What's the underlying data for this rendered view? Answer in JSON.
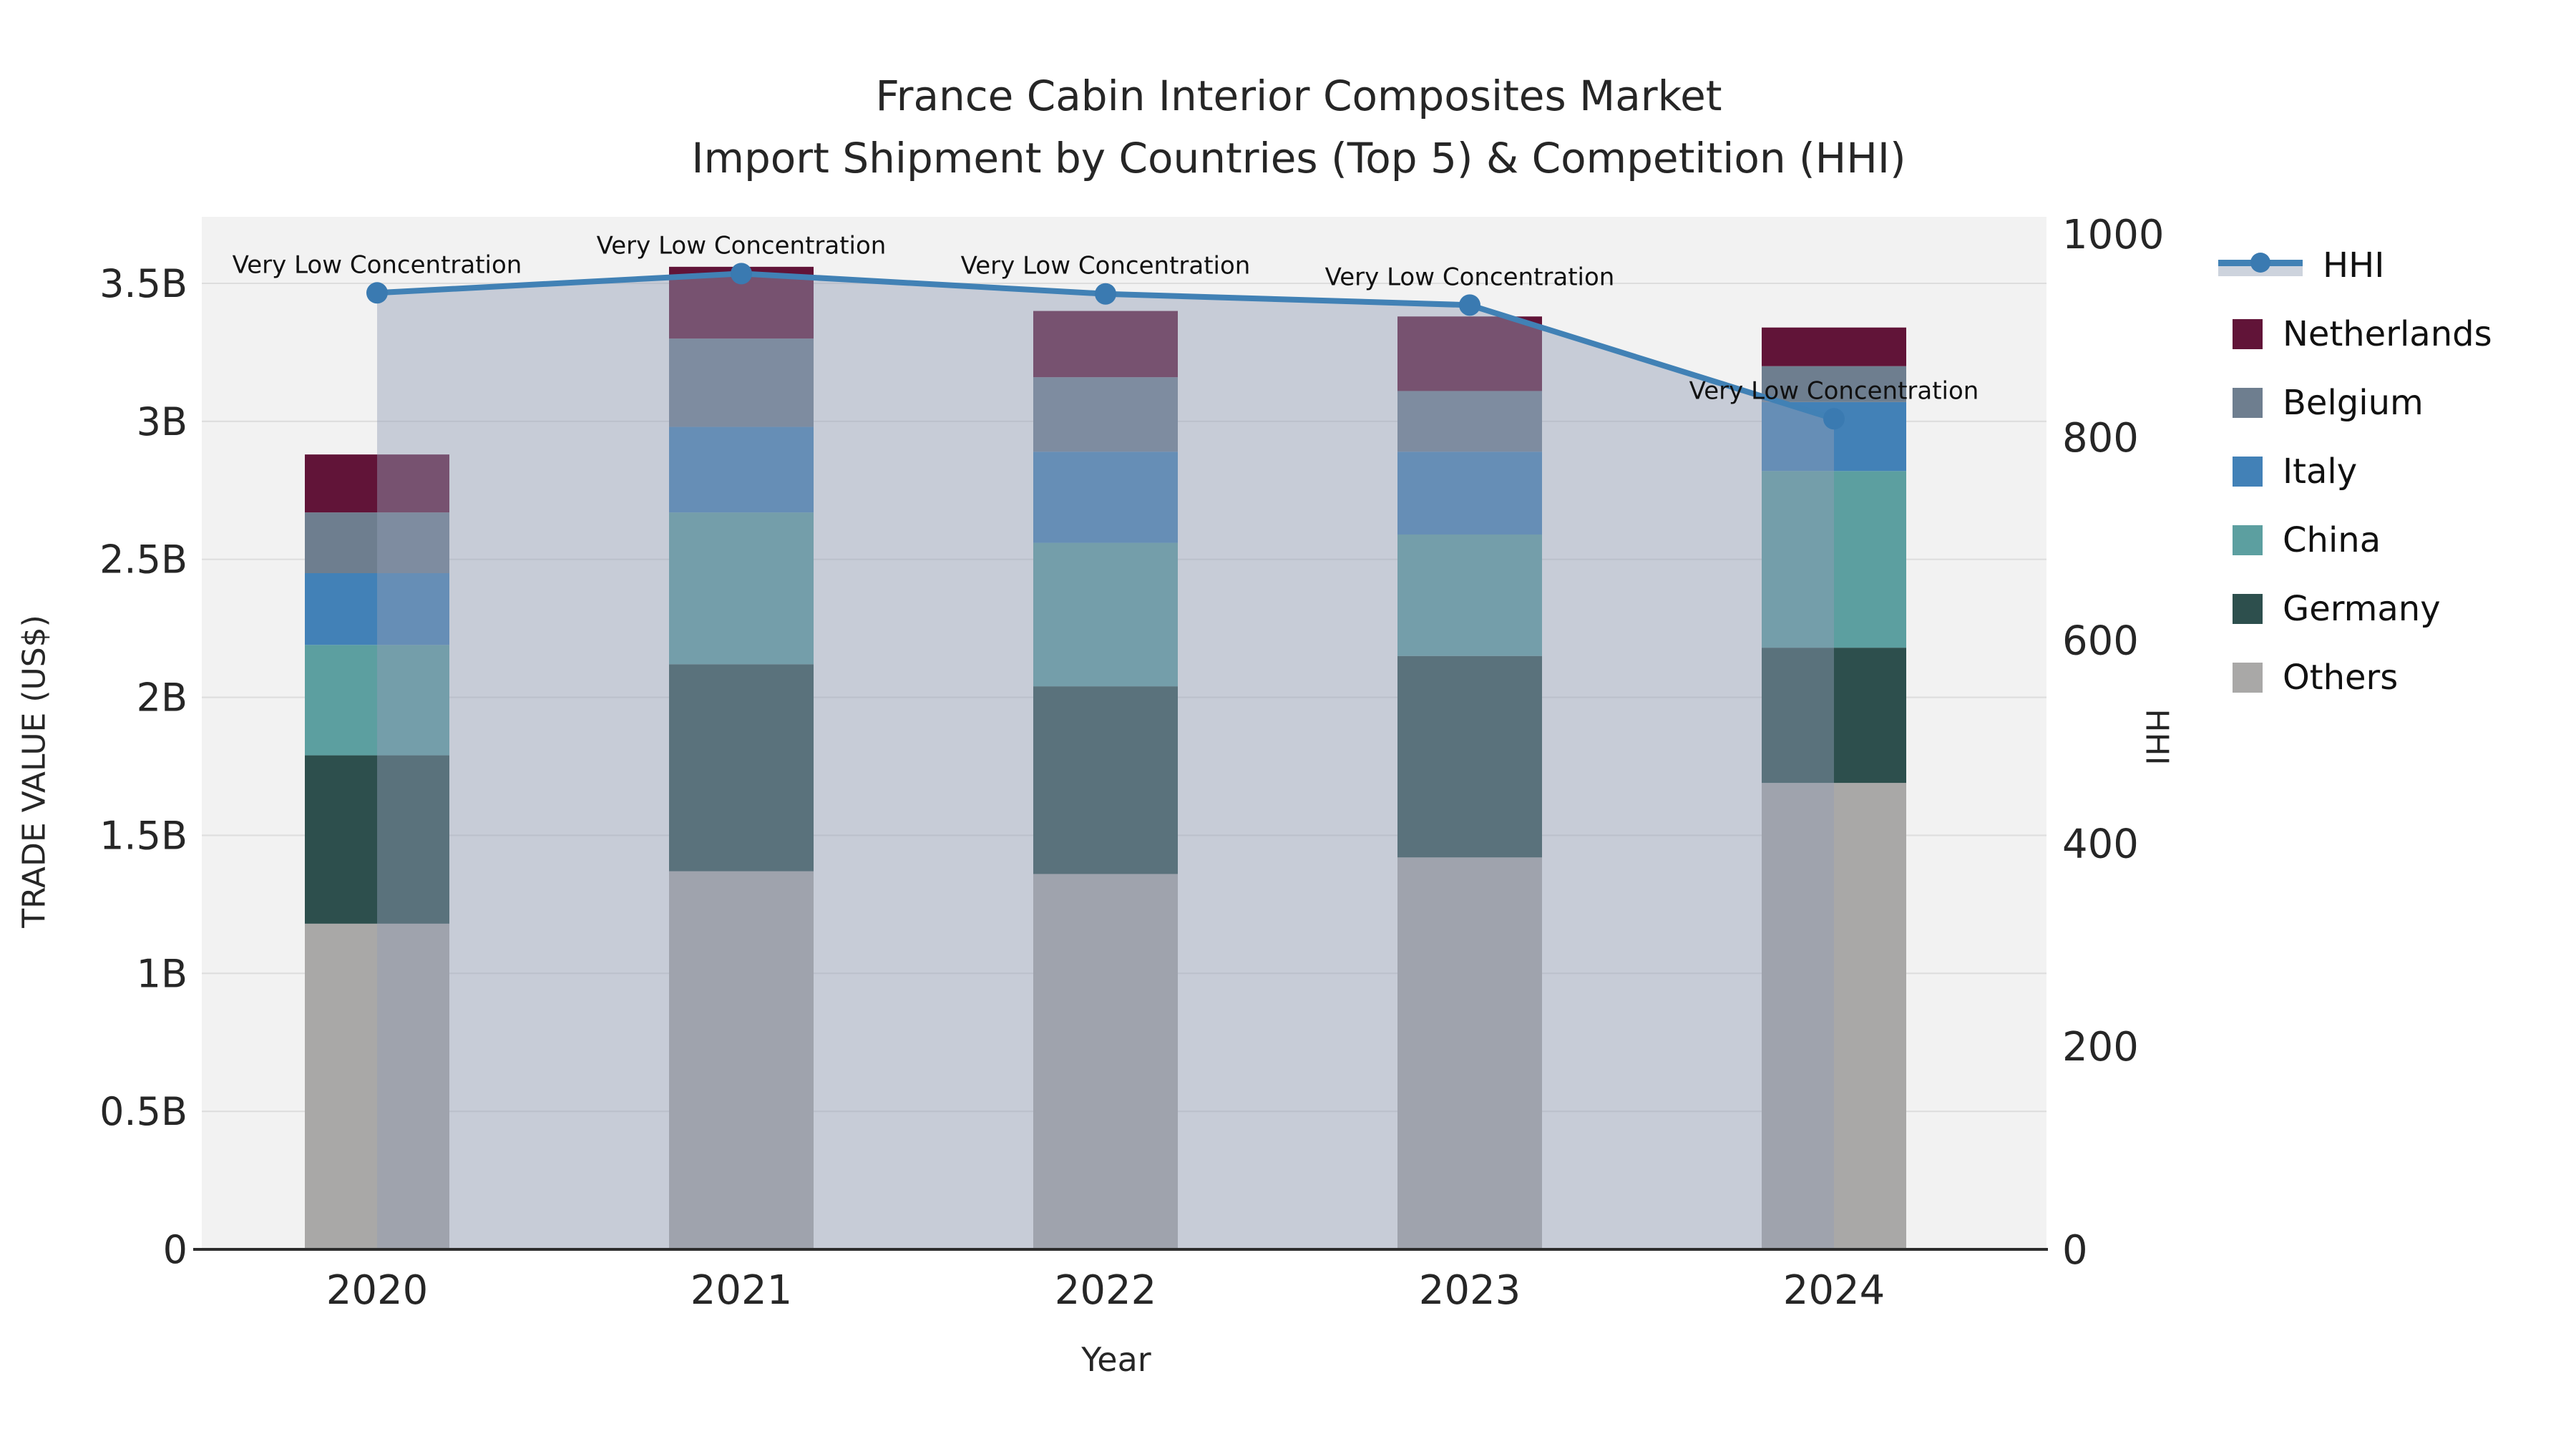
{
  "title": {
    "line1": "France Cabin Interior Composites Market",
    "line2": "Import Shipment by Countries (Top 5) & Competition (HHI)"
  },
  "axes": {
    "y_left": {
      "title": "TRADE VALUE (US$)",
      "ticks": [
        "0",
        "0.5B",
        "1B",
        "1.5B",
        "2B",
        "2.5B",
        "3B",
        "3.5B"
      ]
    },
    "y_right": {
      "title": "HHI",
      "ticks": [
        "0",
        "200",
        "400",
        "600",
        "800",
        "1000"
      ]
    },
    "x": {
      "title": "Year",
      "ticks": [
        "2020",
        "2021",
        "2022",
        "2023",
        "2024"
      ]
    }
  },
  "legend": {
    "entries": [
      {
        "label": "HHI",
        "type": "line",
        "color": "#4181b5"
      },
      {
        "label": "Netherlands",
        "type": "square",
        "color": "#611438"
      },
      {
        "label": "Belgium",
        "type": "square",
        "color": "#6e7e8f"
      },
      {
        "label": "Italy",
        "type": "square",
        "color": "#4281b7"
      },
      {
        "label": "China",
        "type": "square",
        "color": "#5c9fa0"
      },
      {
        "label": "Germany",
        "type": "square",
        "color": "#2d4f4d"
      },
      {
        "label": "Others",
        "type": "square",
        "color": "#a9a8a7"
      }
    ]
  },
  "chart_data": {
    "type": "bar+line",
    "stacked": true,
    "categories": [
      "2020",
      "2021",
      "2022",
      "2023",
      "2024"
    ],
    "unit": "billions USD",
    "series": [
      {
        "name": "Others",
        "color": "#a9a8a7",
        "values": [
          1.18,
          1.37,
          1.36,
          1.42,
          1.69
        ]
      },
      {
        "name": "Germany",
        "color": "#2d4f4d",
        "values": [
          0.61,
          0.75,
          0.68,
          0.73,
          0.49
        ]
      },
      {
        "name": "China",
        "color": "#5c9fa0",
        "values": [
          0.4,
          0.55,
          0.52,
          0.44,
          0.64
        ]
      },
      {
        "name": "Italy",
        "color": "#4281b7",
        "values": [
          0.26,
          0.31,
          0.33,
          0.3,
          0.25
        ]
      },
      {
        "name": "Belgium",
        "color": "#6e7e8f",
        "values": [
          0.22,
          0.32,
          0.27,
          0.22,
          0.13
        ]
      },
      {
        "name": "Netherlands",
        "color": "#611438",
        "values": [
          0.21,
          0.26,
          0.24,
          0.27,
          0.14
        ]
      }
    ],
    "totals": [
      2.88,
      3.56,
      3.4,
      3.38,
      3.34
    ],
    "line_series": {
      "name": "HHI",
      "axis": "right",
      "color": "#4181b5",
      "marker_color": "#3a7ab1",
      "values": [
        942,
        961,
        941,
        930,
        818
      ],
      "annotations": [
        "Very Low Concentration",
        "Very Low Concentration",
        "Very Low Concentration",
        "Very Low Concentration",
        "Very Low Concentration"
      ]
    },
    "xlabel": "Year",
    "ylabel_left": "TRADE VALUE (US$)",
    "ylabel_right": "HHI",
    "ylim_left": [
      0,
      3.74
    ],
    "ylim_right": [
      0,
      1017
    ],
    "grid": true,
    "legend_position": "right"
  },
  "colors": {
    "background": "#ffffff",
    "plot_background": "#f2f2f2",
    "gridline": "#dddddd",
    "axis_line": "#2d2d2d",
    "hhi_fill": "#939db6",
    "text": "#1a1a1a"
  }
}
